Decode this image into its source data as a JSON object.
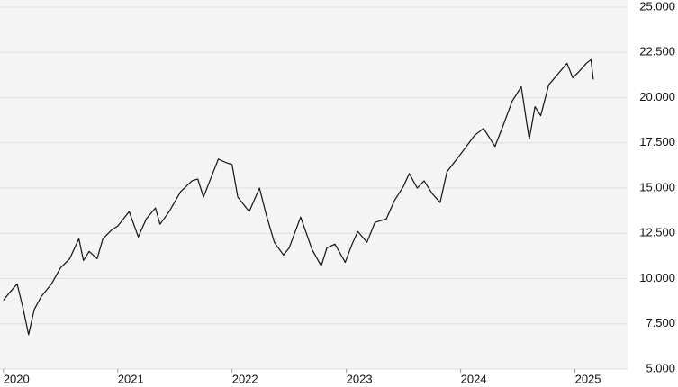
{
  "chart_data": {
    "type": "line",
    "x": [
      2020.0,
      2020.05,
      2020.12,
      2020.17,
      2020.22,
      2020.27,
      2020.33,
      2020.42,
      2020.5,
      2020.58,
      2020.66,
      2020.7,
      2020.75,
      2020.82,
      2020.87,
      2020.95,
      2021.0,
      2021.1,
      2021.18,
      2021.25,
      2021.33,
      2021.37,
      2021.45,
      2021.55,
      2021.65,
      2021.7,
      2021.75,
      2021.88,
      2021.95,
      2022.0,
      2022.05,
      2022.15,
      2022.24,
      2022.3,
      2022.37,
      2022.45,
      2022.5,
      2022.6,
      2022.7,
      2022.78,
      2022.83,
      2022.9,
      2022.99,
      2023.05,
      2023.1,
      2023.18,
      2023.25,
      2023.35,
      2023.42,
      2023.5,
      2023.55,
      2023.62,
      2023.68,
      2023.75,
      2023.82,
      2023.88,
      2023.99,
      2024.05,
      2024.12,
      2024.2,
      2024.3,
      2024.38,
      2024.45,
      2024.53,
      2024.58,
      2024.6,
      2024.65,
      2024.7,
      2024.77,
      2024.85,
      2024.93,
      2024.98,
      2025.03,
      2025.1,
      2025.14,
      2025.16
    ],
    "series": [
      {
        "color": "#111111",
        "values": [
          8800,
          9200,
          9700,
          8400,
          6900,
          8300,
          9000,
          9700,
          10600,
          11100,
          12200,
          11000,
          11500,
          11100,
          12200,
          12700,
          12900,
          13700,
          12300,
          13300,
          13900,
          13000,
          13700,
          14800,
          15400,
          15500,
          14500,
          16600,
          16400,
          16300,
          14500,
          13700,
          15000,
          13500,
          12000,
          11300,
          11700,
          13400,
          11600,
          10700,
          11700,
          11900,
          10900,
          11900,
          12600,
          12000,
          13100,
          13300,
          14300,
          15100,
          15800,
          15000,
          15400,
          14700,
          14200,
          15900,
          16800,
          17300,
          17900,
          18300,
          17300,
          18600,
          19800,
          20600,
          18500,
          17700,
          19500,
          19000,
          20700,
          21300,
          21900,
          21100,
          21400,
          21900,
          22100,
          21000
        ]
      }
    ],
    "xlim": [
      2019.97,
      2025.46
    ],
    "xticks": [
      2020,
      2021,
      2022,
      2023,
      2024,
      2025
    ],
    "ylim": [
      5000,
      25000
    ],
    "yticks": [
      {
        "value": 5000,
        "label": "5.000"
      },
      {
        "value": 7500,
        "label": "7.500"
      },
      {
        "value": 10000,
        "label": "10.000"
      },
      {
        "value": 12500,
        "label": "12.500"
      },
      {
        "value": 15000,
        "label": "15.000"
      },
      {
        "value": 17500,
        "label": "17.500"
      },
      {
        "value": 20000,
        "label": "20.000"
      },
      {
        "value": 22500,
        "label": "22.500"
      },
      {
        "value": 25000,
        "label": "25.000"
      }
    ],
    "grid": true
  }
}
